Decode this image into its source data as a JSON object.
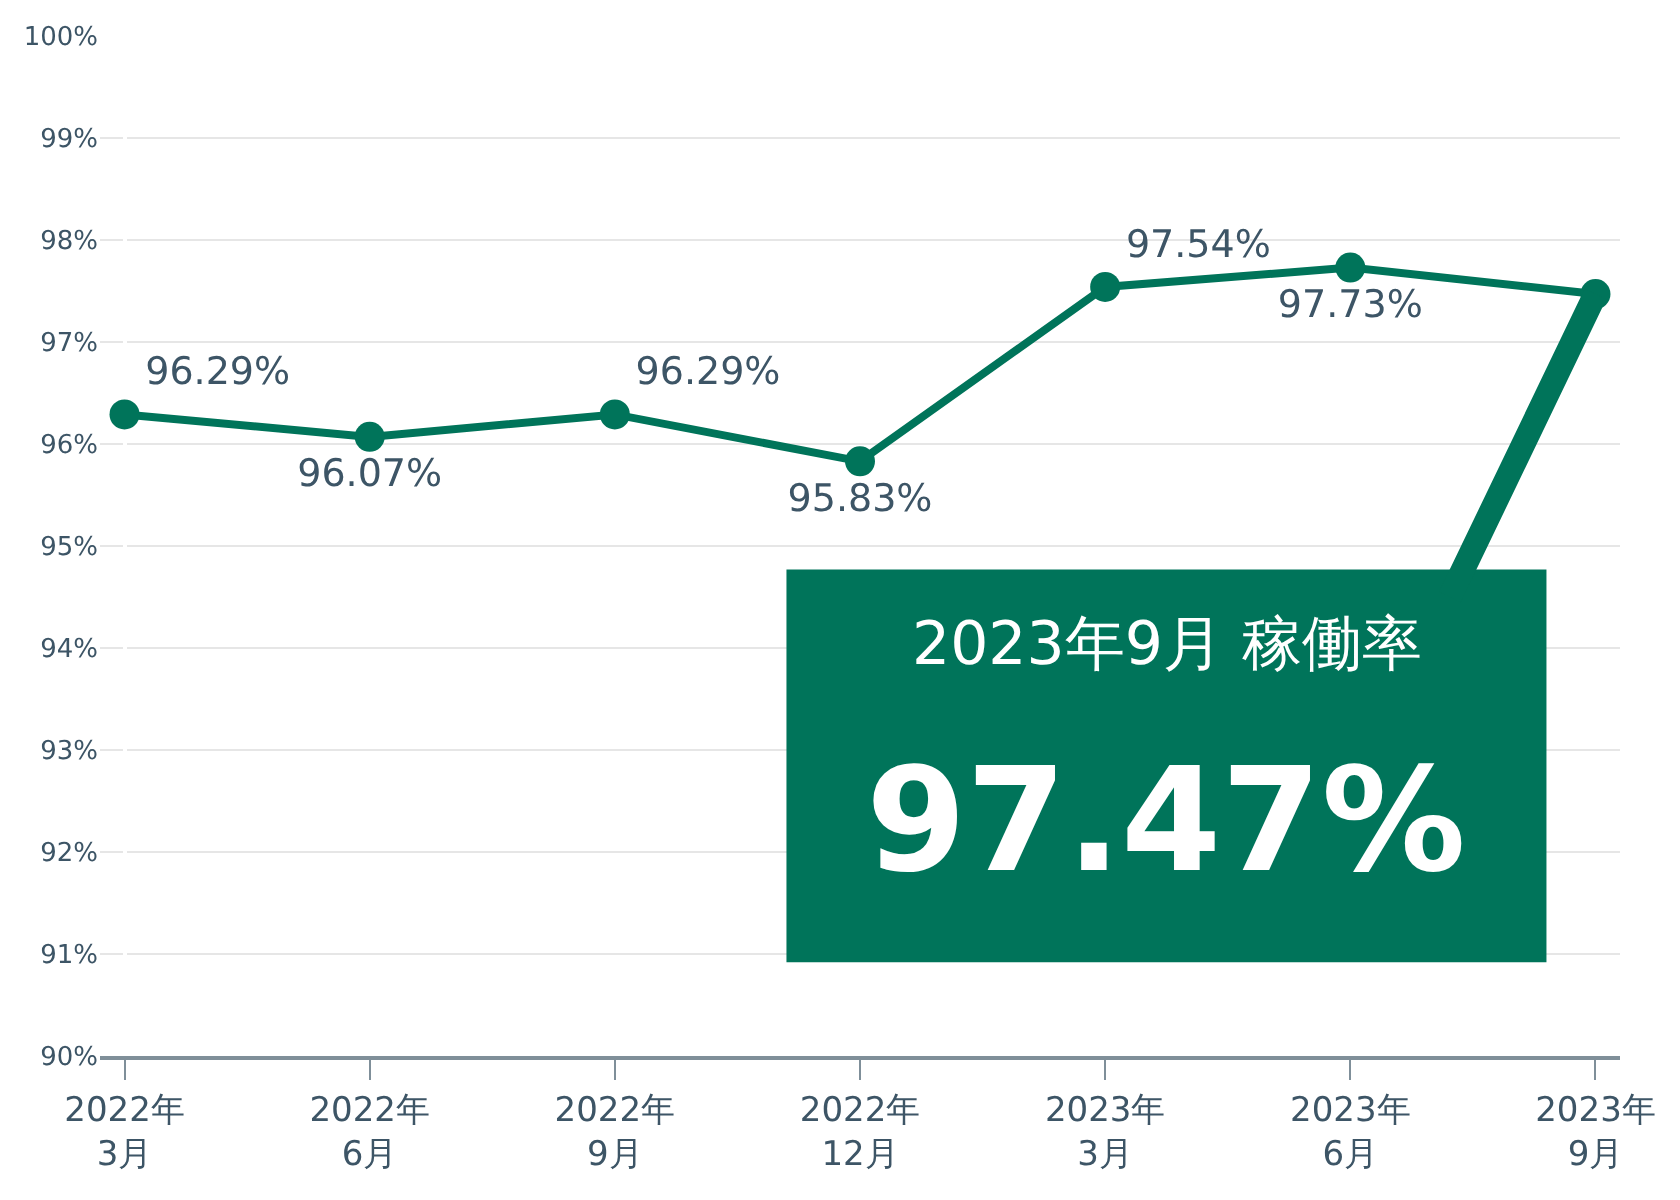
{
  "chart_data": {
    "type": "line",
    "categories": [
      "2022年\n3月",
      "2022年\n6月",
      "2022年\n9月",
      "2022年\n12月",
      "2023年\n3月",
      "2023年\n6月",
      "2023年\n9月"
    ],
    "series": [
      {
        "color": "#00745a",
        "values": [
          96.29,
          96.07,
          96.29,
          95.83,
          97.54,
          97.73,
          97.47
        ],
        "value_labels": [
          "96.29%",
          "96.07%",
          "96.29%",
          "95.83%",
          "97.54%",
          "97.73%",
          null
        ]
      }
    ],
    "ylim": [
      90,
      100
    ],
    "yticks": [
      {
        "value": 90,
        "label": "90%"
      },
      {
        "value": 91,
        "label": "91%"
      },
      {
        "value": 92,
        "label": "92%"
      },
      {
        "value": 93,
        "label": "93%"
      },
      {
        "value": 94,
        "label": "94%"
      },
      {
        "value": 95,
        "label": "95%"
      },
      {
        "value": 96,
        "label": "96%"
      },
      {
        "value": 97,
        "label": "97%"
      },
      {
        "value": 98,
        "label": "98%"
      },
      {
        "value": 99,
        "label": "99%"
      },
      {
        "value": 100,
        "label": "100%"
      }
    ],
    "grid": "y",
    "marker": "circle",
    "line_style": "solid",
    "legend": false,
    "annotations": [
      {
        "text": "2023年9月 稼働率\n97.47%",
        "x": "2023年\n9月",
        "y": 97.47
      }
    ]
  }
}
